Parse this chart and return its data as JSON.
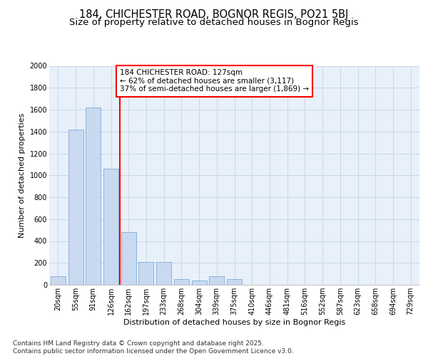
{
  "title_line1": "184, CHICHESTER ROAD, BOGNOR REGIS, PO21 5BJ",
  "title_line2": "Size of property relative to detached houses in Bognor Regis",
  "xlabel": "Distribution of detached houses by size in Bognor Regis",
  "ylabel": "Number of detached properties",
  "categories": [
    "20sqm",
    "55sqm",
    "91sqm",
    "126sqm",
    "162sqm",
    "197sqm",
    "233sqm",
    "268sqm",
    "304sqm",
    "339sqm",
    "375sqm",
    "410sqm",
    "446sqm",
    "481sqm",
    "516sqm",
    "552sqm",
    "587sqm",
    "623sqm",
    "658sqm",
    "694sqm",
    "729sqm"
  ],
  "values": [
    75,
    1420,
    1620,
    1060,
    480,
    205,
    205,
    55,
    40,
    75,
    55,
    0,
    0,
    0,
    0,
    0,
    0,
    0,
    0,
    0,
    0
  ],
  "bar_color": "#c9d9f0",
  "bar_edge_color": "#7fadd4",
  "grid_color": "#c8d8e8",
  "background_color": "#e8f0fa",
  "vline_color": "red",
  "vline_position": 3.5,
  "annotation_text": "184 CHICHESTER ROAD: 127sqm\n← 62% of detached houses are smaller (3,117)\n37% of semi-detached houses are larger (1,869) →",
  "annotation_box_color": "red",
  "ylim": [
    0,
    2000
  ],
  "yticks": [
    0,
    200,
    400,
    600,
    800,
    1000,
    1200,
    1400,
    1600,
    1800,
    2000
  ],
  "footnote": "Contains HM Land Registry data © Crown copyright and database right 2025.\nContains public sector information licensed under the Open Government Licence v3.0.",
  "title_fontsize": 10.5,
  "subtitle_fontsize": 9.5,
  "axis_label_fontsize": 8,
  "tick_fontsize": 7,
  "annot_fontsize": 7.5,
  "footnote_fontsize": 6.5
}
